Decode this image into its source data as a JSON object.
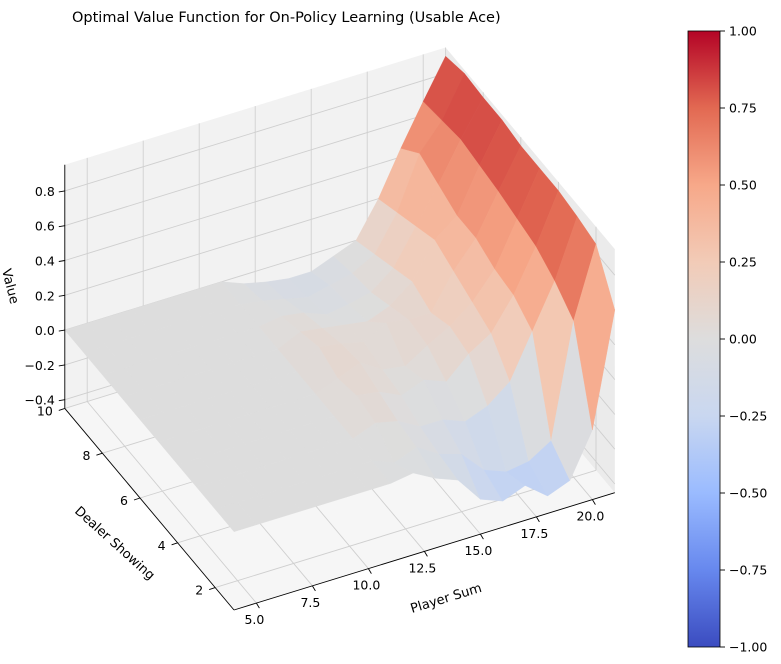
{
  "chart_data": {
    "type": "surface3d",
    "title": "Optimal Value Function for On-Policy Learning (Usable Ace)",
    "xlabel": "Player Sum",
    "ylabel": "Dealer Showing",
    "zlabel": "Value",
    "x": [
      4,
      5,
      6,
      7,
      8,
      9,
      10,
      11,
      12,
      13,
      14,
      15,
      16,
      17,
      18,
      19,
      20,
      21
    ],
    "y": [
      1,
      2,
      3,
      4,
      5,
      6,
      7,
      8,
      9,
      10
    ],
    "xlim": [
      4,
      21
    ],
    "ylim": [
      1,
      10
    ],
    "zlim": [
      -0.45,
      0.95
    ],
    "x_ticks": [
      "5.0",
      "7.5",
      "10.0",
      "12.5",
      "15.0",
      "17.5",
      "20.0"
    ],
    "y_ticks": [
      "2",
      "4",
      "6",
      "8",
      "10"
    ],
    "z_ticks": [
      "−0.4",
      "−0.2",
      "0.0",
      "0.2",
      "0.4",
      "0.6",
      "0.8"
    ],
    "values": [
      [
        0,
        0,
        0,
        0,
        0,
        0,
        0,
        0,
        0.02,
        -0.05,
        -0.1,
        -0.25,
        -0.3,
        -0.25,
        -0.35,
        -0.3,
        -0.05,
        0.6
      ],
      [
        0,
        0,
        0,
        0,
        0,
        0,
        0,
        0,
        -0.05,
        0.0,
        -0.08,
        -0.12,
        -0.25,
        -0.3,
        -0.28,
        -0.2,
        0.45,
        0.85
      ],
      [
        0,
        0,
        0,
        0,
        0,
        0,
        0,
        0,
        0.05,
        0.02,
        -0.05,
        -0.05,
        -0.1,
        -0.05,
        0.05,
        0.3,
        0.55,
        0.88
      ],
      [
        0,
        0,
        0,
        0,
        0,
        0,
        0,
        0,
        0.08,
        0.06,
        0.0,
        0.05,
        0.0,
        0.12,
        0.2,
        0.38,
        0.62,
        0.9
      ],
      [
        0,
        0,
        0,
        0,
        0,
        0,
        0,
        0,
        0.05,
        0.1,
        0.02,
        0.0,
        0.08,
        0.15,
        0.25,
        0.4,
        0.65,
        0.9
      ],
      [
        0,
        0,
        0,
        0,
        0,
        0,
        0,
        0,
        0.1,
        0.08,
        0.05,
        0.12,
        0.1,
        0.1,
        0.3,
        0.45,
        0.68,
        0.9
      ],
      [
        0,
        0,
        0,
        0,
        0,
        0,
        0,
        0,
        0.06,
        0.04,
        0.02,
        0.0,
        0.05,
        0.15,
        0.35,
        0.45,
        0.7,
        0.92
      ],
      [
        0,
        0,
        0,
        0,
        0,
        0,
        0,
        0,
        0.02,
        0.0,
        -0.05,
        -0.03,
        0.0,
        0.1,
        0.3,
        0.5,
        0.72,
        0.92
      ],
      [
        0,
        0,
        0,
        0,
        0,
        0,
        0,
        0,
        -0.02,
        -0.05,
        -0.08,
        -0.05,
        -0.02,
        0.05,
        0.25,
        0.55,
        0.7,
        0.93
      ],
      [
        0,
        0,
        0,
        0,
        0,
        0,
        0,
        0,
        -0.05,
        -0.08,
        -0.1,
        -0.1,
        -0.05,
        0.0,
        0.2,
        0.45,
        0.68,
        0.9
      ]
    ],
    "colormap": "coolwarm",
    "colorbar": {
      "range": [
        -1.0,
        1.0
      ],
      "ticks": [
        "1.00",
        "0.75",
        "0.50",
        "0.25",
        "0.00",
        "−0.25",
        "−0.50",
        "−0.75",
        "−1.00"
      ],
      "colors": [
        "#3b4cc0",
        "#6788ee",
        "#9abbff",
        "#c9d7f0",
        "#dddddd",
        "#f2cbb7",
        "#f7a889",
        "#e26952",
        "#b40426"
      ]
    },
    "grid": true,
    "pane_color": "#f2f2f2"
  }
}
